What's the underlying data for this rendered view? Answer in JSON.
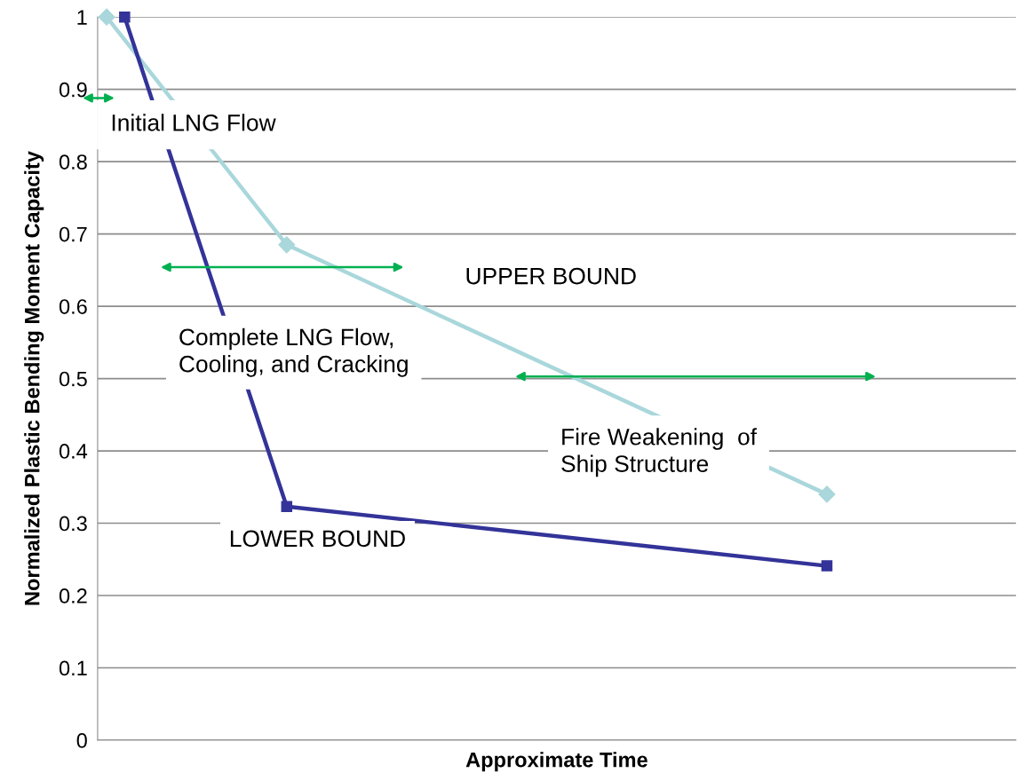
{
  "chart_data": {
    "type": "line",
    "xlabel": "Approximate Time",
    "ylabel": "Normalized Plastic Bending Moment Capacity",
    "categories": [
      null,
      null,
      null,
      null,
      null,
      null,
      null,
      null,
      null,
      null,
      null,
      null,
      null,
      null,
      null,
      null,
      null,
      null,
      null,
      null,
      null,
      null,
      null,
      null,
      null,
      null,
      null,
      null,
      null,
      null,
      null,
      null,
      null,
      null,
      null,
      null,
      null,
      null,
      null,
      null,
      null,
      null,
      null,
      null,
      null,
      null,
      null,
      null,
      null,
      null,
      null
    ],
    "ylim": [
      0,
      1
    ],
    "yticks": [
      0,
      0.1,
      0.2,
      0.3,
      0.4,
      0.5,
      0.6,
      0.7,
      0.8,
      0.9,
      1
    ],
    "tick_labels": "y",
    "grid": "y",
    "series": [
      {
        "color": "#a9d7db",
        "marker": "diamond",
        "values": [
          1,
          null,
          null,
          null,
          null,
          null,
          null,
          null,
          null,
          null,
          0.685,
          null,
          null,
          null,
          null,
          null,
          null,
          null,
          null,
          null,
          null,
          null,
          null,
          null,
          null,
          null,
          null,
          null,
          null,
          null,
          null,
          null,
          null,
          null,
          null,
          null,
          null,
          null,
          null,
          null,
          0.34,
          null,
          null,
          null,
          null,
          null,
          null,
          null,
          null,
          null,
          null
        ]
      },
      {
        "color": "#333399",
        "marker": "square",
        "values": [
          null,
          1,
          null,
          null,
          null,
          null,
          null,
          null,
          null,
          null,
          0.323,
          null,
          null,
          null,
          null,
          null,
          null,
          null,
          null,
          null,
          null,
          null,
          null,
          null,
          null,
          null,
          null,
          null,
          null,
          null,
          null,
          null,
          null,
          null,
          null,
          null,
          null,
          null,
          null,
          null,
          0.241,
          null,
          null,
          null,
          null,
          null,
          null,
          null,
          null,
          null,
          null
        ]
      }
    ],
    "annotations": [
      "Initial LNG Flow",
      "UPPER BOUND",
      "Complete LNG Flow,\nCooling, and Cracking",
      "Fire Weakening  of\nShip Structure",
      "LOWER BOUND"
    ]
  }
}
